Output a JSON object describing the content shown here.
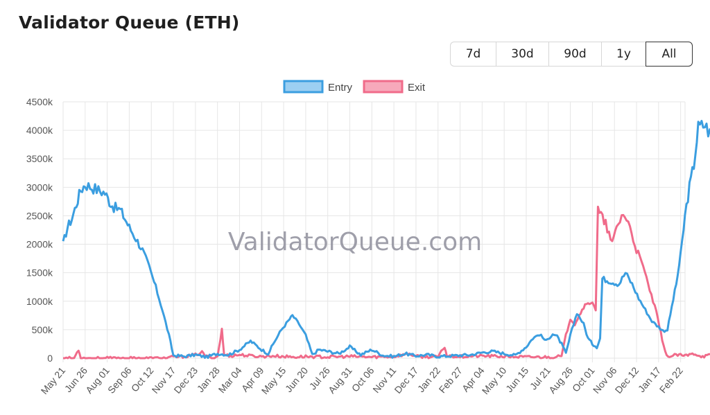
{
  "page": {
    "title": "Validator Queue (ETH)",
    "watermark": "ValidatorQueue.com"
  },
  "range_buttons": [
    {
      "label": "7d",
      "active": false
    },
    {
      "label": "30d",
      "active": false
    },
    {
      "label": "90d",
      "active": false
    },
    {
      "label": "1y",
      "active": false
    },
    {
      "label": "All",
      "active": true
    }
  ],
  "colors": {
    "entry": "#3b9ee0",
    "exit": "#f06b8a",
    "entry_fill": "#9ccff2",
    "exit_fill": "#f7a9bb",
    "grid": "#e6e6e6"
  },
  "chart_data": {
    "type": "line",
    "legend_placement": "top-center",
    "grid": true,
    "ylim": [
      0,
      4500
    ],
    "y_ticks": [
      "0",
      "500k",
      "1000k",
      "1500k",
      "2000k",
      "2500k",
      "3000k",
      "3500k",
      "4000k",
      "4500k"
    ],
    "x_ticks": [
      "May 21",
      "Jun 26",
      "Aug 01",
      "Sep 06",
      "Oct 12",
      "Nov 17",
      "Dec 23",
      "Jan 28",
      "Mar 04",
      "Apr 09",
      "May 15",
      "Jun 20",
      "Jul 26",
      "Aug 31",
      "Oct 06",
      "Nov 11",
      "Dec 17",
      "Jan 22",
      "Feb 27",
      "Apr 04",
      "May 10",
      "Jun 15",
      "Jul 21",
      "Aug 26",
      "Oct 01",
      "Nov 06",
      "Dec 12",
      "Jan 17",
      "Feb 22"
    ],
    "series": [
      {
        "name": "Entry",
        "points": [
          [
            0,
            2000
          ],
          [
            0.2,
            2300
          ],
          [
            0.4,
            2450
          ],
          [
            0.6,
            2700
          ],
          [
            0.8,
            2950
          ],
          [
            1,
            3050
          ],
          [
            1.3,
            3000
          ],
          [
            1.6,
            2950
          ],
          [
            1.9,
            2900
          ],
          [
            2.1,
            2750
          ],
          [
            2.3,
            2650
          ],
          [
            2.6,
            2600
          ],
          [
            2.8,
            2450
          ],
          [
            3,
            2300
          ],
          [
            3.3,
            2100
          ],
          [
            3.6,
            1900
          ],
          [
            3.9,
            1600
          ],
          [
            4.2,
            1250
          ],
          [
            4.5,
            850
          ],
          [
            4.8,
            400
          ],
          [
            5.0,
            50
          ],
          [
            5.5,
            30
          ],
          [
            6,
            60
          ],
          [
            6.5,
            20
          ],
          [
            7,
            80
          ],
          [
            7.5,
            60
          ],
          [
            8,
            150
          ],
          [
            8.5,
            300
          ],
          [
            9,
            150
          ],
          [
            9.3,
            80
          ],
          [
            9.6,
            300
          ],
          [
            9.9,
            500
          ],
          [
            10.2,
            650
          ],
          [
            10.4,
            750
          ],
          [
            10.7,
            600
          ],
          [
            11,
            400
          ],
          [
            11.3,
            60
          ],
          [
            11.6,
            150
          ],
          [
            12,
            120
          ],
          [
            12.5,
            80
          ],
          [
            13,
            200
          ],
          [
            13.5,
            60
          ],
          [
            14,
            150
          ],
          [
            14.5,
            50
          ],
          [
            15,
            30
          ],
          [
            15.5,
            80
          ],
          [
            16,
            40
          ],
          [
            16.5,
            60
          ],
          [
            17,
            30
          ],
          [
            17.5,
            40
          ],
          [
            18,
            50
          ],
          [
            18.5,
            60
          ],
          [
            19,
            100
          ],
          [
            19.5,
            120
          ],
          [
            20,
            80
          ],
          [
            20.5,
            50
          ],
          [
            21,
            200
          ],
          [
            21.3,
            350
          ],
          [
            21.6,
            420
          ],
          [
            21.9,
            300
          ],
          [
            22.2,
            430
          ],
          [
            22.4,
            380
          ],
          [
            22.6,
            250
          ],
          [
            22.8,
            80
          ],
          [
            23,
            400
          ],
          [
            23.3,
            800
          ],
          [
            23.6,
            600
          ],
          [
            23.8,
            350
          ],
          [
            24,
            250
          ],
          [
            24.2,
            200
          ],
          [
            24.35,
            350
          ],
          [
            24.45,
            1400
          ],
          [
            24.8,
            1350
          ],
          [
            25.2,
            1300
          ],
          [
            25.5,
            1500
          ],
          [
            25.8,
            1300
          ],
          [
            26.1,
            1050
          ],
          [
            26.4,
            850
          ],
          [
            26.7,
            650
          ],
          [
            27,
            550
          ],
          [
            27.2,
            480
          ],
          [
            27.4,
            500
          ],
          [
            27.6,
            900
          ],
          [
            27.8,
            1300
          ],
          [
            28,
            1800
          ],
          [
            28.2,
            2500
          ],
          [
            28.4,
            3000
          ],
          [
            28.6,
            3400
          ],
          [
            28.8,
            4050
          ],
          [
            29.1,
            4100
          ],
          [
            29.4,
            3900
          ],
          [
            29.7,
            3600
          ],
          [
            30,
            3300
          ]
        ]
      },
      {
        "name": "Exit",
        "points": [
          [
            0,
            0
          ],
          [
            0.5,
            0
          ],
          [
            0.7,
            150
          ],
          [
            0.8,
            0
          ],
          [
            2,
            0
          ],
          [
            3,
            0
          ],
          [
            4,
            0
          ],
          [
            4.5,
            0
          ],
          [
            5,
            20
          ],
          [
            5.5,
            30
          ],
          [
            6,
            60
          ],
          [
            6.3,
            100
          ],
          [
            6.5,
            30
          ],
          [
            6.8,
            0
          ],
          [
            7,
            30
          ],
          [
            7.2,
            500
          ],
          [
            7.3,
            60
          ],
          [
            7.6,
            40
          ],
          [
            8,
            60
          ],
          [
            8.5,
            40
          ],
          [
            9,
            30
          ],
          [
            9.5,
            40
          ],
          [
            10,
            30
          ],
          [
            10.5,
            20
          ],
          [
            11,
            30
          ],
          [
            12,
            20
          ],
          [
            13,
            30
          ],
          [
            14,
            20
          ],
          [
            15,
            30
          ],
          [
            15.7,
            80
          ],
          [
            16,
            30
          ],
          [
            17,
            20
          ],
          [
            17.3,
            200
          ],
          [
            17.4,
            40
          ],
          [
            18,
            30
          ],
          [
            19,
            40
          ],
          [
            20,
            30
          ],
          [
            21,
            20
          ],
          [
            22,
            20
          ],
          [
            22.6,
            30
          ],
          [
            22.8,
            400
          ],
          [
            23,
            700
          ],
          [
            23.2,
            600
          ],
          [
            23.4,
            750
          ],
          [
            23.6,
            900
          ],
          [
            23.8,
            950
          ],
          [
            24.0,
            1000
          ],
          [
            24.15,
            850
          ],
          [
            24.25,
            2600
          ],
          [
            24.6,
            2350
          ],
          [
            24.9,
            2000
          ],
          [
            25.1,
            2300
          ],
          [
            25.4,
            2550
          ],
          [
            25.7,
            2300
          ],
          [
            26.0,
            1900
          ],
          [
            26.3,
            1600
          ],
          [
            26.6,
            1200
          ],
          [
            26.9,
            800
          ],
          [
            27.1,
            450
          ],
          [
            27.3,
            100
          ],
          [
            27.5,
            20
          ],
          [
            27.8,
            60
          ],
          [
            28.2,
            40
          ],
          [
            28.6,
            80
          ],
          [
            29,
            30
          ],
          [
            29.4,
            60
          ],
          [
            29.7,
            200
          ],
          [
            30,
            20
          ]
        ]
      }
    ]
  }
}
